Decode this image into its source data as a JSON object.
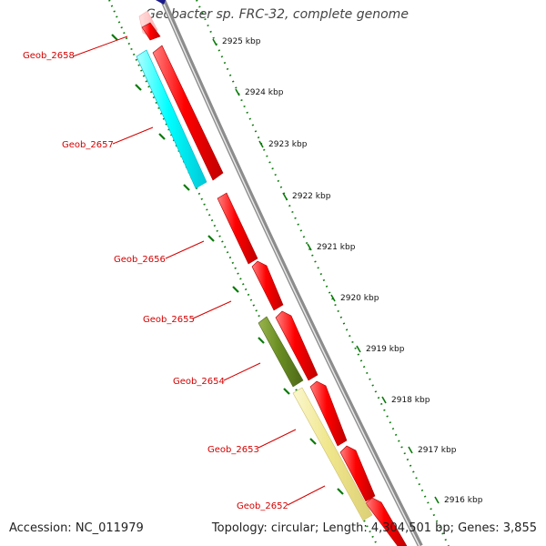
{
  "title": "Geobacter sp. FRC-32, complete genome",
  "accession": "Accession: NC_011979",
  "summary": "Topology: circular; Length: 4,304,501 bp; Genes: 3,855",
  "colors": {
    "gene_red": "#ff0000",
    "gene_cyan": "#00ffff",
    "gene_olive": "#6b8e23",
    "gene_khaki": "#f0e68c",
    "label_red": "#d40000",
    "backbone": "#8c8c8c",
    "tick_green": "#0a7a0a"
  },
  "kbp_labels": [
    "2925 kbp",
    "2924 kbp",
    "2923 kbp",
    "2922 kbp",
    "2921 kbp",
    "2920 kbp",
    "2919 kbp",
    "2918 kbp",
    "2917 kbp",
    "2916 kbp"
  ],
  "gene_labels": [
    "Geob_2658",
    "Geob_2657",
    "Geob_2656",
    "Geob_2655",
    "Geob_2654",
    "Geob_2653",
    "Geob_2652"
  ]
}
